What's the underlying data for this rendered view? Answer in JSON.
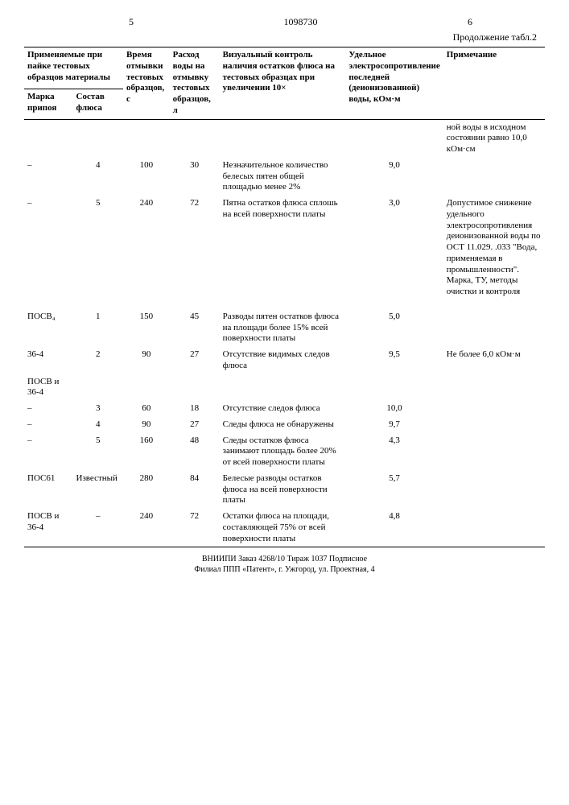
{
  "header": {
    "page_left": "5",
    "doc_number": "1098730",
    "page_right": "6",
    "continuation": "Продолжение табл.2"
  },
  "columns": {
    "group1_title": "Применяемые при пайке тестовых образцов материалы",
    "marka_pripoya": "Марка припоя",
    "sostav_flyusa": "Состав флюса",
    "vremya": "Время отмывки тестовых образцов, с",
    "rashod": "Расход воды на отмывку тестовых образцов, л",
    "vizual": "Визуальный контроль наличия остатков флюса на тестовых образцах при увеличении 10×",
    "udelnoe": "Удельное электросопротивление последней (деионизованной) воды, кОм·м",
    "prim": "Примечание"
  },
  "rows": [
    {
      "marka": "",
      "sostav": "",
      "vremya": "",
      "rashod": "",
      "vizual": "",
      "udel": "",
      "prim": "ной воды в исходном состоянии равно 10,0 кОм·см"
    },
    {
      "marka": "–",
      "sostav": "4",
      "vremya": "100",
      "rashod": "30",
      "vizual": "Незначительное количество белесых пятен общей площадью менее 2%",
      "udel": "9,0",
      "prim": ""
    },
    {
      "marka": "–",
      "sostav": "5",
      "vremya": "240",
      "rashod": "72",
      "vizual": "Пятна остатков флюса сплошь на всей поверхности платы",
      "udel": "3,0",
      "prim": "Допустимое снижение удельного электросопротивления деионизованной воды по ОСТ 11.029. .033 \"Вода, применяемая в промышленности\". Марка, ТУ, методы очистки и контроля"
    },
    {
      "marka": "ПОСВ₄",
      "sostav": "1",
      "vremya": "150",
      "rashod": "45",
      "vizual": "Разводы пятен остатков флюса на площади более 15% всей поверхности платы",
      "udel": "5,0",
      "prim": ""
    },
    {
      "marka": "36-4",
      "sostav": "2",
      "vremya": "90",
      "rashod": "27",
      "vizual": "Отсутствие видимых следов флюса",
      "udel": "9,5",
      "prim": "Не более 6,0 кОм·м"
    },
    {
      "marka": "ПОСВ и 36-4",
      "sostav": "",
      "vremya": "",
      "rashod": "",
      "vizual": "",
      "udel": "",
      "prim": ""
    },
    {
      "marka": "–",
      "sostav": "3",
      "vremya": "60",
      "rashod": "18",
      "vizual": "Отсутствие следов флюса",
      "udel": "10,0",
      "prim": ""
    },
    {
      "marka": "–",
      "sostav": "4",
      "vremya": "90",
      "rashod": "27",
      "vizual": "Следы флюса не обнаружены",
      "udel": "9,7",
      "prim": ""
    },
    {
      "marka": "–",
      "sostav": "5",
      "vremya": "160",
      "rashod": "48",
      "vizual": "Следы остатков флюса занимают площадь более 20% от всей поверхности платы",
      "udel": "4,3",
      "prim": ""
    },
    {
      "marka": "ПОС61",
      "sostav": "Известный",
      "vremya": "280",
      "rashod": "84",
      "vizual": "Белесые разводы остатков флюса на всей поверхности платы",
      "udel": "5,7",
      "prim": ""
    },
    {
      "marka": "ПОСВ и 36-4",
      "sostav": "–",
      "vremya": "240",
      "rashod": "72",
      "vizual": "Остатки флюса на площади, составляющей 75% от всей поверхности платы",
      "udel": "4,8",
      "prim": ""
    }
  ],
  "footer": {
    "line1": "ВНИИПИ   Заказ 4268/10   Тираж 1037   Подписное",
    "line2": "Филиал ППП «Патент», г. Ужгород, ул. Проектная, 4"
  }
}
